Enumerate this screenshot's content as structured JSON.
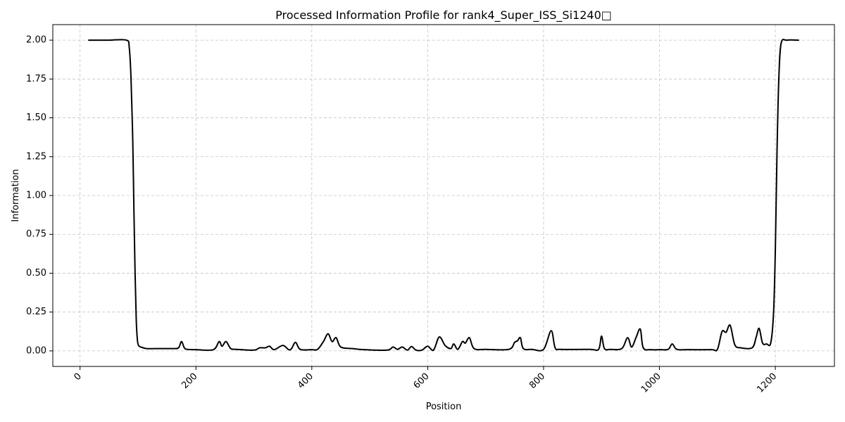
{
  "chart_data": {
    "type": "line",
    "title": "Processed Information Profile for rank4_Super_ISS_Si1240□",
    "xlabel": "Position",
    "ylabel": "Information",
    "xlim": [
      -47,
      1302
    ],
    "ylim": [
      -0.1,
      2.1
    ],
    "xticks": [
      0,
      200,
      400,
      600,
      800,
      1000,
      1200
    ],
    "xtick_labels": [
      "0",
      "200",
      "400",
      "600",
      "800",
      "1000",
      "1200"
    ],
    "yticks": [
      0.0,
      0.25,
      0.5,
      0.75,
      1.0,
      1.25,
      1.5,
      1.75,
      2.0
    ],
    "ytick_labels": [
      "0.00",
      "0.25",
      "0.50",
      "0.75",
      "1.00",
      "1.25",
      "1.50",
      "1.75",
      "2.00"
    ],
    "xtick_rotation": 45,
    "grid": true,
    "series": [
      {
        "color": "#000000",
        "x": [
          15,
          50,
          80,
          85,
          88,
          91,
          93,
          95,
          97,
          99,
          101,
          105,
          115,
          130,
          160,
          170,
          175,
          180,
          185,
          200,
          230,
          240,
          245,
          252,
          260,
          270,
          300,
          310,
          320,
          327,
          335,
          350,
          360,
          365,
          372,
          380,
          400,
          410,
          420,
          428,
          435,
          442,
          450,
          470,
          490,
          530,
          540,
          548,
          556,
          565,
          572,
          580,
          590,
          600,
          610,
          620,
          630,
          640,
          645,
          652,
          660,
          665,
          672,
          680,
          700,
          740,
          750,
          755,
          760,
          765,
          780,
          800,
          813,
          820,
          830,
          880,
          895,
          900,
          905,
          915,
          935,
          945,
          952,
          960,
          967,
          972,
          985,
          1000,
          1015,
          1022,
          1030,
          1050,
          1090,
          1100,
          1108,
          1115,
          1122,
          1130,
          1140,
          1160,
          1167,
          1172,
          1178,
          1185,
          1192,
          1197,
          1200,
          1203,
          1206,
          1210,
          1220,
          1240
        ],
        "y": [
          2.0,
          2.0,
          2.0,
          1.95,
          1.75,
          1.35,
          0.9,
          0.5,
          0.2,
          0.07,
          0.035,
          0.025,
          0.015,
          0.015,
          0.015,
          0.02,
          0.06,
          0.02,
          0.01,
          0.008,
          0.008,
          0.06,
          0.03,
          0.06,
          0.015,
          0.01,
          0.005,
          0.02,
          0.02,
          0.03,
          0.008,
          0.035,
          0.008,
          0.015,
          0.055,
          0.01,
          0.008,
          0.01,
          0.06,
          0.11,
          0.06,
          0.085,
          0.025,
          0.015,
          0.008,
          0.005,
          0.025,
          0.01,
          0.025,
          0.005,
          0.028,
          0.005,
          0.005,
          0.03,
          0.005,
          0.09,
          0.035,
          0.015,
          0.045,
          0.01,
          0.06,
          0.05,
          0.085,
          0.015,
          0.01,
          0.01,
          0.055,
          0.065,
          0.085,
          0.015,
          0.01,
          0.01,
          0.13,
          0.02,
          0.01,
          0.01,
          0.01,
          0.095,
          0.015,
          0.01,
          0.015,
          0.085,
          0.025,
          0.09,
          0.14,
          0.02,
          0.008,
          0.008,
          0.01,
          0.045,
          0.01,
          0.008,
          0.008,
          0.01,
          0.125,
          0.12,
          0.165,
          0.04,
          0.02,
          0.02,
          0.09,
          0.145,
          0.05,
          0.045,
          0.05,
          0.25,
          0.65,
          1.3,
          1.75,
          1.98,
          2.0,
          2.0
        ]
      }
    ]
  }
}
